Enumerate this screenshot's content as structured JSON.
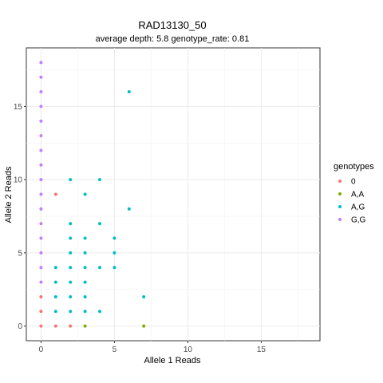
{
  "chart_data": {
    "type": "scatter",
    "title": "RAD13130_50",
    "subtitle": "average depth:  5.8  genotype_rate:  0.81",
    "xlabel": "Allele 1 Reads",
    "ylabel": "Allele 2 Reads",
    "xlim": [
      -1,
      19
    ],
    "ylim": [
      -1,
      19
    ],
    "xticks": [
      0,
      5,
      10,
      15
    ],
    "yticks": [
      0,
      5,
      10,
      15
    ],
    "grid": true,
    "legend": {
      "title": "genotypes",
      "position": "right"
    },
    "series": [
      {
        "name": "0",
        "color": "#F8766D",
        "points": [
          [
            0,
            0
          ],
          [
            1,
            0
          ],
          [
            2,
            0
          ],
          [
            0,
            1
          ],
          [
            0,
            2
          ],
          [
            1,
            9
          ]
        ]
      },
      {
        "name": "A,A",
        "color": "#7CAE00",
        "points": [
          [
            3,
            0
          ],
          [
            7,
            0
          ]
        ]
      },
      {
        "name": "A,G",
        "color": "#00BFC4",
        "points": [
          [
            1,
            1
          ],
          [
            2,
            1
          ],
          [
            3,
            1
          ],
          [
            4,
            1
          ],
          [
            1,
            2
          ],
          [
            2,
            2
          ],
          [
            3,
            2
          ],
          [
            7,
            2
          ],
          [
            1,
            3
          ],
          [
            2,
            3
          ],
          [
            3,
            3
          ],
          [
            1,
            4
          ],
          [
            2,
            4
          ],
          [
            3,
            4
          ],
          [
            4,
            4
          ],
          [
            5,
            4
          ],
          [
            2,
            5
          ],
          [
            3,
            5
          ],
          [
            5,
            5
          ],
          [
            2,
            6
          ],
          [
            3,
            6
          ],
          [
            5,
            6
          ],
          [
            2,
            7
          ],
          [
            4,
            7
          ],
          [
            6,
            8
          ],
          [
            3,
            9
          ],
          [
            2,
            10
          ],
          [
            4,
            10
          ],
          [
            6,
            16
          ]
        ]
      },
      {
        "name": "G,G",
        "color": "#C77CFF",
        "points": [
          [
            0,
            3
          ],
          [
            0,
            4
          ],
          [
            0,
            5
          ],
          [
            0,
            6
          ],
          [
            0,
            7
          ],
          [
            0,
            8
          ],
          [
            0,
            9
          ],
          [
            0,
            10
          ],
          [
            0,
            11
          ],
          [
            0,
            12
          ],
          [
            0,
            13
          ],
          [
            0,
            14
          ],
          [
            0,
            15
          ],
          [
            0,
            16
          ],
          [
            0,
            17
          ],
          [
            0,
            18
          ]
        ]
      }
    ]
  }
}
